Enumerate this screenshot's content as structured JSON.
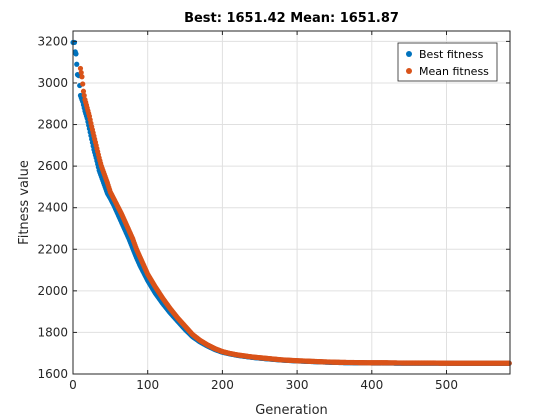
{
  "chart_data": {
    "type": "scatter",
    "title": "Best: 1651.42 Mean: 1651.87",
    "xlabel": "Generation",
    "ylabel": "Fitness value",
    "xlim": [
      0,
      585
    ],
    "ylim": [
      1600,
      3250
    ],
    "xticks": [
      0,
      100,
      200,
      300,
      400,
      500
    ],
    "yticks": [
      1600,
      1800,
      2000,
      2200,
      2400,
      2600,
      2800,
      3000,
      3200
    ],
    "grid": true,
    "legend_position": "top-right",
    "series": [
      {
        "name": "Best fitness",
        "color": "#0072BD",
        "marker": "circle",
        "points": [
          [
            0,
            3195
          ],
          [
            1,
            3195
          ],
          [
            2,
            3195
          ],
          [
            3,
            3150
          ],
          [
            4,
            3140
          ],
          [
            6,
            3040
          ],
          [
            8,
            3035
          ],
          [
            10,
            2940
          ],
          [
            13,
            2910
          ],
          [
            16,
            2865
          ],
          [
            19,
            2830
          ],
          [
            22,
            2780
          ],
          [
            25,
            2730
          ],
          [
            28,
            2680
          ],
          [
            31,
            2640
          ],
          [
            35,
            2580
          ],
          [
            38,
            2550
          ],
          [
            42,
            2510
          ],
          [
            46,
            2470
          ],
          [
            50,
            2445
          ],
          [
            55,
            2410
          ],
          [
            60,
            2370
          ],
          [
            65,
            2330
          ],
          [
            70,
            2290
          ],
          [
            75,
            2250
          ],
          [
            80,
            2205
          ],
          [
            85,
            2160
          ],
          [
            90,
            2120
          ],
          [
            95,
            2085
          ],
          [
            100,
            2050
          ],
          [
            110,
            1990
          ],
          [
            120,
            1940
          ],
          [
            130,
            1895
          ],
          [
            140,
            1855
          ],
          [
            150,
            1815
          ],
          [
            160,
            1780
          ],
          [
            170,
            1755
          ],
          [
            180,
            1735
          ],
          [
            190,
            1718
          ],
          [
            200,
            1705
          ],
          [
            210,
            1697
          ],
          [
            220,
            1690
          ],
          [
            240,
            1680
          ],
          [
            260,
            1673
          ],
          [
            280,
            1667
          ],
          [
            300,
            1663
          ],
          [
            320,
            1660
          ],
          [
            340,
            1657
          ],
          [
            360,
            1655
          ],
          [
            380,
            1654
          ],
          [
            400,
            1653
          ],
          [
            420,
            1653
          ],
          [
            440,
            1652
          ],
          [
            460,
            1652
          ],
          [
            480,
            1652
          ],
          [
            500,
            1652
          ],
          [
            520,
            1651
          ],
          [
            540,
            1651
          ],
          [
            560,
            1651
          ],
          [
            584,
            1651.42
          ]
        ]
      },
      {
        "name": "Mean fitness",
        "color": "#D95319",
        "marker": "circle",
        "points": [
          [
            10,
            3070
          ],
          [
            12,
            3030
          ],
          [
            14,
            2960
          ],
          [
            16,
            2920
          ],
          [
            19,
            2880
          ],
          [
            22,
            2840
          ],
          [
            25,
            2790
          ],
          [
            28,
            2745
          ],
          [
            31,
            2700
          ],
          [
            35,
            2640
          ],
          [
            38,
            2600
          ],
          [
            42,
            2560
          ],
          [
            46,
            2520
          ],
          [
            50,
            2475
          ],
          [
            55,
            2440
          ],
          [
            60,
            2405
          ],
          [
            65,
            2370
          ],
          [
            70,
            2330
          ],
          [
            75,
            2290
          ],
          [
            80,
            2250
          ],
          [
            85,
            2200
          ],
          [
            90,
            2160
          ],
          [
            95,
            2120
          ],
          [
            100,
            2080
          ],
          [
            110,
            2020
          ],
          [
            120,
            1965
          ],
          [
            130,
            1915
          ],
          [
            140,
            1870
          ],
          [
            150,
            1830
          ],
          [
            160,
            1790
          ],
          [
            170,
            1762
          ],
          [
            180,
            1740
          ],
          [
            190,
            1722
          ],
          [
            200,
            1708
          ],
          [
            210,
            1699
          ],
          [
            220,
            1692
          ],
          [
            240,
            1682
          ],
          [
            260,
            1675
          ],
          [
            280,
            1668
          ],
          [
            300,
            1664
          ],
          [
            320,
            1661
          ],
          [
            340,
            1658
          ],
          [
            360,
            1656
          ],
          [
            380,
            1655
          ],
          [
            400,
            1654
          ],
          [
            420,
            1654
          ],
          [
            440,
            1653
          ],
          [
            460,
            1653
          ],
          [
            480,
            1653
          ],
          [
            500,
            1652
          ],
          [
            520,
            1652
          ],
          [
            540,
            1652
          ],
          [
            560,
            1652
          ],
          [
            584,
            1651.87
          ]
        ]
      }
    ]
  }
}
